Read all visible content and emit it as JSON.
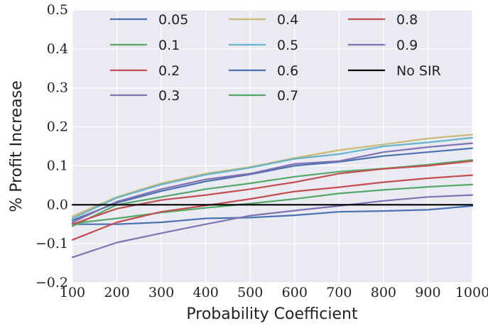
{
  "chart_data": {
    "type": "line",
    "title": "",
    "xlabel": "Probability Coefficient",
    "ylabel": "% Profit Increase",
    "x": [
      100,
      200,
      300,
      400,
      500,
      600,
      700,
      800,
      900,
      1000
    ],
    "xlim": [
      100,
      1000
    ],
    "ylim": [
      -0.2,
      0.5
    ],
    "xticks": [
      "100",
      "200",
      "300",
      "400",
      "500",
      "600",
      "700",
      "800",
      "900",
      "1000"
    ],
    "yticks": [
      "0.5",
      "0.4",
      "0.3",
      "0.2",
      "0.1",
      "0.0",
      "−0.1",
      "−0.2"
    ],
    "grid": true,
    "legend_position": "top",
    "background": "#EAEAF2",
    "series": [
      {
        "name": "0.05",
        "color": "#4C72B0",
        "values": [
          -0.05,
          -0.05,
          -0.045,
          -0.035,
          -0.033,
          -0.027,
          -0.018,
          -0.016,
          -0.013,
          -0.003
        ]
      },
      {
        "name": "0.1",
        "color": "#55A868",
        "values": [
          -0.048,
          -0.035,
          -0.02,
          -0.008,
          0.003,
          0.015,
          0.029,
          0.038,
          0.046,
          0.052
        ]
      },
      {
        "name": "0.2",
        "color": "#C44E52",
        "values": [
          -0.09,
          -0.045,
          -0.018,
          -0.002,
          0.015,
          0.034,
          0.045,
          0.058,
          0.068,
          0.076
        ]
      },
      {
        "name": "0.3",
        "color": "#8172B2",
        "values": [
          -0.135,
          -0.097,
          -0.073,
          -0.05,
          -0.028,
          -0.015,
          -0.003,
          0.01,
          0.02,
          0.025
        ]
      },
      {
        "name": "0.4",
        "color": "#CCB974",
        "values": [
          -0.03,
          0.02,
          0.055,
          0.08,
          0.097,
          0.12,
          0.14,
          0.155,
          0.17,
          0.18
        ]
      },
      {
        "name": "0.5",
        "color": "#64B5CD",
        "values": [
          -0.035,
          0.018,
          0.052,
          0.077,
          0.095,
          0.118,
          0.13,
          0.15,
          0.16,
          0.172
        ]
      },
      {
        "name": "0.6",
        "color": "#4C72B0",
        "values": [
          -0.04,
          0.005,
          0.035,
          0.06,
          0.078,
          0.1,
          0.11,
          0.125,
          0.135,
          0.145
        ]
      },
      {
        "name": "0.7",
        "color": "#55A868",
        "values": [
          -0.055,
          0.0,
          0.02,
          0.04,
          0.055,
          0.072,
          0.085,
          0.093,
          0.103,
          0.115
        ]
      },
      {
        "name": "0.8",
        "color": "#C44E52",
        "values": [
          -0.05,
          -0.01,
          0.012,
          0.025,
          0.04,
          0.058,
          0.08,
          0.092,
          0.1,
          0.112
        ]
      },
      {
        "name": "0.9",
        "color": "#8172B2",
        "values": [
          -0.045,
          0.008,
          0.04,
          0.065,
          0.08,
          0.105,
          0.112,
          0.135,
          0.148,
          0.158
        ]
      },
      {
        "name": "No SIR",
        "color": "#000000",
        "values": [
          0,
          0,
          0,
          0,
          0,
          0,
          0,
          0,
          0,
          0
        ]
      }
    ]
  }
}
